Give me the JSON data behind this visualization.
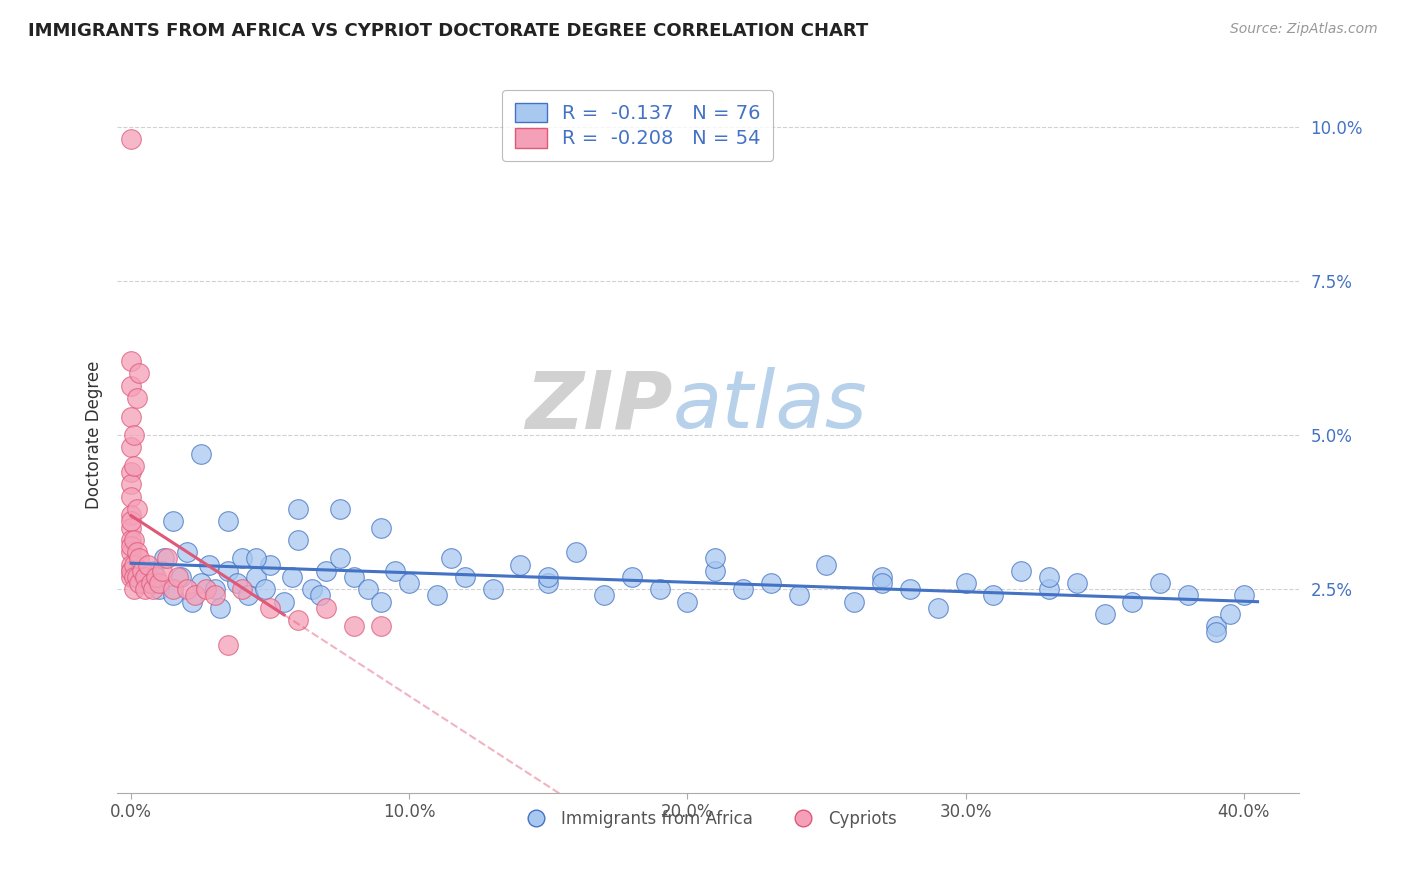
{
  "title": "IMMIGRANTS FROM AFRICA VS CYPRIOT DOCTORATE DEGREE CORRELATION CHART",
  "source": "Source: ZipAtlas.com",
  "ylabel": "Doctorate Degree",
  "y_tick_labels": [
    "2.5%",
    "5.0%",
    "7.5%",
    "10.0%"
  ],
  "y_tick_values": [
    0.025,
    0.05,
    0.075,
    0.1
  ],
  "x_tick_labels": [
    "0.0%",
    "10.0%",
    "20.0%",
    "30.0%",
    "40.0%"
  ],
  "x_tick_values": [
    0.0,
    0.1,
    0.2,
    0.3,
    0.4
  ],
  "xlim": [
    -0.005,
    0.42
  ],
  "ylim": [
    -0.008,
    0.108
  ],
  "blue_color": "#A8C8F0",
  "pink_color": "#F4A0B8",
  "blue_line_color": "#4472C4",
  "pink_line_color": "#E05878",
  "legend_label_blue": "Immigrants from Africa",
  "legend_label_pink": "Cypriots",
  "watermark_zip": "ZIP",
  "watermark_atlas": "atlas",
  "blue_x": [
    0.002,
    0.005,
    0.008,
    0.01,
    0.012,
    0.015,
    0.018,
    0.02,
    0.022,
    0.025,
    0.028,
    0.03,
    0.032,
    0.035,
    0.038,
    0.04,
    0.042,
    0.045,
    0.048,
    0.05,
    0.055,
    0.058,
    0.06,
    0.065,
    0.068,
    0.07,
    0.075,
    0.08,
    0.085,
    0.09,
    0.095,
    0.1,
    0.11,
    0.115,
    0.12,
    0.13,
    0.14,
    0.15,
    0.16,
    0.17,
    0.18,
    0.19,
    0.2,
    0.21,
    0.22,
    0.23,
    0.24,
    0.25,
    0.26,
    0.27,
    0.28,
    0.29,
    0.3,
    0.31,
    0.32,
    0.33,
    0.34,
    0.35,
    0.36,
    0.37,
    0.38,
    0.39,
    0.395,
    0.4,
    0.015,
    0.025,
    0.035,
    0.045,
    0.06,
    0.075,
    0.09,
    0.15,
    0.21,
    0.27,
    0.33,
    0.39
  ],
  "blue_y": [
    0.027,
    0.026,
    0.028,
    0.025,
    0.03,
    0.024,
    0.027,
    0.031,
    0.023,
    0.026,
    0.029,
    0.025,
    0.022,
    0.028,
    0.026,
    0.03,
    0.024,
    0.027,
    0.025,
    0.029,
    0.023,
    0.027,
    0.033,
    0.025,
    0.024,
    0.028,
    0.03,
    0.027,
    0.025,
    0.023,
    0.028,
    0.026,
    0.024,
    0.03,
    0.027,
    0.025,
    0.029,
    0.026,
    0.031,
    0.024,
    0.027,
    0.025,
    0.023,
    0.028,
    0.025,
    0.026,
    0.024,
    0.029,
    0.023,
    0.027,
    0.025,
    0.022,
    0.026,
    0.024,
    0.028,
    0.025,
    0.026,
    0.021,
    0.023,
    0.026,
    0.024,
    0.019,
    0.021,
    0.024,
    0.036,
    0.047,
    0.036,
    0.03,
    0.038,
    0.038,
    0.035,
    0.027,
    0.03,
    0.026,
    0.027,
    0.018
  ],
  "pink_x": [
    0.0,
    0.0,
    0.0,
    0.0,
    0.0,
    0.0,
    0.0,
    0.0,
    0.0,
    0.0,
    0.0,
    0.0,
    0.0,
    0.0,
    0.0,
    0.0,
    0.0,
    0.0,
    0.001,
    0.001,
    0.001,
    0.001,
    0.002,
    0.002,
    0.003,
    0.003,
    0.004,
    0.005,
    0.005,
    0.006,
    0.007,
    0.008,
    0.009,
    0.01,
    0.011,
    0.013,
    0.015,
    0.017,
    0.02,
    0.023,
    0.027,
    0.03,
    0.035,
    0.04,
    0.05,
    0.06,
    0.07,
    0.08,
    0.09,
    0.002,
    0.001,
    0.001,
    0.002,
    0.003
  ],
  "pink_y": [
    0.098,
    0.062,
    0.058,
    0.053,
    0.048,
    0.044,
    0.042,
    0.04,
    0.037,
    0.035,
    0.033,
    0.031,
    0.029,
    0.028,
    0.027,
    0.036,
    0.032,
    0.028,
    0.033,
    0.029,
    0.027,
    0.025,
    0.031,
    0.027,
    0.03,
    0.026,
    0.028,
    0.027,
    0.025,
    0.029,
    0.026,
    0.025,
    0.027,
    0.026,
    0.028,
    0.03,
    0.025,
    0.027,
    0.025,
    0.024,
    0.025,
    0.024,
    0.016,
    0.025,
    0.022,
    0.02,
    0.022,
    0.019,
    0.019,
    0.038,
    0.045,
    0.05,
    0.056,
    0.06
  ]
}
